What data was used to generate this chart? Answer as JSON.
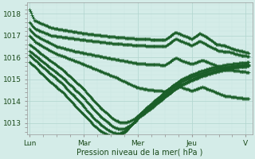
{
  "background_color": "#d4ece8",
  "grid_major_color": "#b0d4ce",
  "grid_minor_color": "#c8e6e2",
  "line_color": "#1a5e28",
  "xlabel": "Pression niveau de la mer( hPa )",
  "ylim": [
    1012.5,
    1018.5
  ],
  "yticks": [
    1013,
    1014,
    1015,
    1016,
    1017,
    1018
  ],
  "xticks": [
    0,
    1,
    2,
    3,
    4
  ],
  "xticklabels": [
    "Lun",
    "Mar",
    "Mer",
    "Jeu",
    "V"
  ],
  "series": [
    {
      "knots_x": [
        0,
        0.05,
        0.2,
        0.5,
        0.7,
        0.95,
        1.0,
        1.25,
        1.5,
        1.7,
        2.0,
        2.1,
        2.5,
        2.7,
        2.85,
        3.0,
        3.15,
        3.3,
        3.5,
        3.7,
        3.85,
        4.05
      ],
      "knots_y": [
        1018.2,
        1017.85,
        1017.6,
        1017.3,
        1017.1,
        1017.0,
        1016.95,
        1016.85,
        1016.7,
        1016.55,
        1016.45,
        1016.42,
        1016.35,
        1016.28,
        1016.22,
        1016.18,
        1016.14,
        1016.1,
        1016.0,
        1015.92,
        1015.88,
        1015.82
      ]
    },
    {
      "knots_x": [
        0,
        0.05,
        0.15,
        0.25,
        0.45,
        0.65,
        0.9,
        1.1,
        1.3,
        1.5,
        1.7,
        1.9,
        2.1,
        2.3,
        2.5,
        2.7,
        2.85,
        3.0,
        3.15,
        3.3,
        3.55,
        3.75,
        4.05
      ],
      "knots_y": [
        1017.75,
        1017.45,
        1017.25,
        1017.05,
        1016.8,
        1016.65,
        1016.45,
        1016.3,
        1016.15,
        1015.95,
        1015.75,
        1015.55,
        1015.42,
        1015.32,
        1015.22,
        1015.15,
        1015.08,
        1015.0,
        1014.95,
        1014.9,
        1014.85,
        1014.82,
        1014.78
      ]
    },
    {
      "knots_x": [
        0,
        0.1,
        0.25,
        0.4,
        0.55,
        0.7,
        0.85,
        1.0,
        1.15,
        1.35,
        1.55,
        1.7,
        1.85,
        2.0,
        2.15,
        2.3,
        2.5,
        2.7,
        2.9,
        3.1,
        3.3,
        3.55,
        3.75,
        4.05
      ],
      "knots_y": [
        1017.5,
        1017.22,
        1017.0,
        1016.78,
        1016.55,
        1016.38,
        1016.2,
        1016.05,
        1015.88,
        1015.65,
        1015.42,
        1015.22,
        1015.05,
        1014.88,
        1014.72,
        1014.6,
        1014.45,
        1014.35,
        1014.28,
        1014.22,
        1014.18,
        1014.14,
        1014.1,
        1014.05
      ]
    },
    {
      "knots_x": [
        0,
        0.08,
        0.2,
        0.35,
        0.5,
        0.65,
        0.8,
        0.95,
        1.1,
        1.25,
        1.4,
        1.55,
        1.65,
        1.75,
        1.85,
        1.95,
        2.05,
        2.2,
        2.4,
        2.6,
        2.8,
        3.0,
        3.2,
        3.4,
        3.65,
        3.85,
        4.05
      ],
      "knots_y": [
        1017.25,
        1017.0,
        1016.75,
        1016.45,
        1016.15,
        1015.85,
        1015.55,
        1015.25,
        1014.95,
        1014.65,
        1014.35,
        1014.08,
        1013.85,
        1013.62,
        1013.45,
        1013.32,
        1013.22,
        1013.18,
        1013.2,
        1013.28,
        1013.4,
        1013.55,
        1013.72,
        1013.88,
        1014.05,
        1014.18,
        1014.28
      ]
    },
    {
      "knots_x": [
        0,
        0.1,
        0.22,
        0.35,
        0.5,
        0.62,
        0.75,
        0.88,
        1.0,
        1.12,
        1.25,
        1.38,
        1.5,
        1.62,
        1.72,
        1.82,
        1.92,
        2.0,
        2.12,
        2.3,
        2.5,
        2.7,
        2.9,
        3.1,
        3.3,
        3.5,
        3.7,
        3.9,
        4.05
      ],
      "knots_y": [
        1017.1,
        1016.8,
        1016.52,
        1016.22,
        1015.88,
        1015.55,
        1015.22,
        1014.9,
        1014.55,
        1014.22,
        1013.9,
        1013.6,
        1013.32,
        1013.1,
        1012.95,
        1012.88,
        1012.85,
        1012.85,
        1012.95,
        1013.12,
        1013.32,
        1013.55,
        1013.78,
        1014.0,
        1014.2,
        1014.38,
        1014.52,
        1014.65,
        1014.72
      ]
    },
    {
      "knots_x": [
        0,
        0.12,
        0.25,
        0.4,
        0.55,
        0.7,
        0.85,
        1.0,
        1.12,
        1.25,
        1.38,
        1.5,
        1.62,
        1.72,
        1.82,
        1.92,
        2.0,
        2.15,
        2.35,
        2.55,
        2.75,
        2.95,
        3.1,
        3.3,
        3.5,
        3.7,
        3.9,
        4.05
      ],
      "knots_y": [
        1016.9,
        1016.6,
        1016.3,
        1015.98,
        1015.62,
        1015.28,
        1014.95,
        1014.6,
        1014.28,
        1013.98,
        1013.68,
        1013.4,
        1013.15,
        1012.98,
        1012.85,
        1012.82,
        1012.82,
        1012.95,
        1013.15,
        1013.38,
        1013.62,
        1013.85,
        1014.05,
        1014.25,
        1014.42,
        1014.55,
        1014.68,
        1014.75
      ]
    },
    {
      "knots_x": [
        0,
        0.12,
        0.25,
        0.4,
        0.55,
        0.7,
        0.85,
        1.0,
        1.12,
        1.22,
        1.32,
        1.42,
        1.52,
        1.62,
        1.72,
        1.82,
        1.92,
        2.0,
        2.2,
        2.4,
        2.6,
        2.8,
        3.0,
        3.2,
        3.4,
        3.6,
        3.8,
        4.05
      ],
      "knots_y": [
        1016.7,
        1016.42,
        1016.12,
        1015.78,
        1015.42,
        1015.08,
        1014.72,
        1014.38,
        1014.05,
        1013.78,
        1013.52,
        1013.28,
        1013.08,
        1012.95,
        1012.85,
        1012.82,
        1012.82,
        1012.85,
        1013.08,
        1013.32,
        1013.58,
        1013.82,
        1014.05,
        1014.25,
        1014.42,
        1014.58,
        1014.7,
        1014.78
      ]
    },
    {
      "knots_x": [
        0,
        0.12,
        0.25,
        0.4,
        0.55,
        0.7,
        0.85,
        1.0,
        1.12,
        1.22,
        1.32,
        1.42,
        1.52,
        1.62,
        1.72,
        1.82,
        1.92,
        2.0,
        2.2,
        2.4,
        2.6,
        2.8,
        3.0,
        3.2,
        3.4,
        3.6,
        3.8,
        4.05
      ],
      "knots_y": [
        1016.5,
        1016.22,
        1015.92,
        1015.58,
        1015.22,
        1014.88,
        1014.52,
        1014.18,
        1013.88,
        1013.62,
        1013.38,
        1013.15,
        1012.98,
        1012.88,
        1012.82,
        1012.82,
        1012.85,
        1012.9,
        1013.15,
        1013.4,
        1013.65,
        1013.88,
        1014.1,
        1014.28,
        1014.45,
        1014.6,
        1014.72,
        1014.8
      ]
    }
  ]
}
